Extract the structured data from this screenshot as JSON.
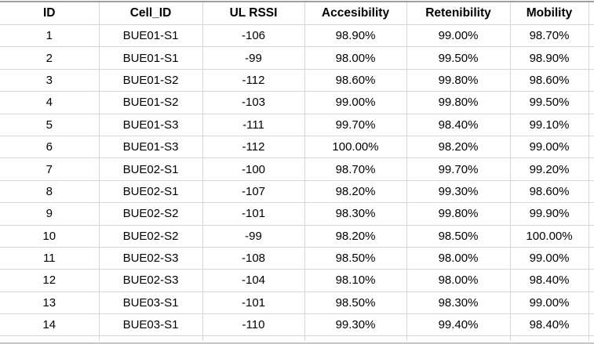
{
  "table": {
    "columns": [
      {
        "key": "id",
        "label": "ID"
      },
      {
        "key": "cell-id",
        "label": "Cell_ID"
      },
      {
        "key": "ul-rssi",
        "label": "UL RSSI"
      },
      {
        "key": "accesibility",
        "label": "Accesibility"
      },
      {
        "key": "retenibility",
        "label": "Retenibility"
      },
      {
        "key": "mobility",
        "label": "Mobility"
      }
    ],
    "rows": [
      [
        "1",
        "BUE01-S1",
        "-106",
        "98.90%",
        "99.00%",
        "98.70%"
      ],
      [
        "2",
        "BUE01-S1",
        "-99",
        "98.00%",
        "99.50%",
        "98.90%"
      ],
      [
        "3",
        "BUE01-S2",
        "-112",
        "98.60%",
        "99.80%",
        "98.60%"
      ],
      [
        "4",
        "BUE01-S2",
        "-103",
        "99.00%",
        "99.80%",
        "99.50%"
      ],
      [
        "5",
        "BUE01-S3",
        "-111",
        "99.70%",
        "98.40%",
        "99.10%"
      ],
      [
        "6",
        "BUE01-S3",
        "-112",
        "100.00%",
        "98.20%",
        "99.00%"
      ],
      [
        "7",
        "BUE02-S1",
        "-100",
        "98.70%",
        "99.70%",
        "99.20%"
      ],
      [
        "8",
        "BUE02-S1",
        "-107",
        "98.20%",
        "99.30%",
        "98.60%"
      ],
      [
        "9",
        "BUE02-S2",
        "-101",
        "98.30%",
        "99.80%",
        "99.90%"
      ],
      [
        "10",
        "BUE02-S2",
        "-99",
        "98.20%",
        "98.50%",
        "100.00%"
      ],
      [
        "11",
        "BUE02-S3",
        "-108",
        "98.50%",
        "98.00%",
        "99.00%"
      ],
      [
        "12",
        "BUE02-S3",
        "-104",
        "98.10%",
        "98.00%",
        "98.40%"
      ],
      [
        "13",
        "BUE03-S1",
        "-101",
        "98.50%",
        "98.30%",
        "99.00%"
      ],
      [
        "14",
        "BUE03-S1",
        "-110",
        "99.30%",
        "99.40%",
        "98.40%"
      ]
    ]
  },
  "colors": {
    "background": "#ffffff",
    "gridline": "#d6d6d6",
    "top_cap": "#a0a0a0",
    "bottom_cap": "#c6c6c6",
    "text": "#000000"
  }
}
